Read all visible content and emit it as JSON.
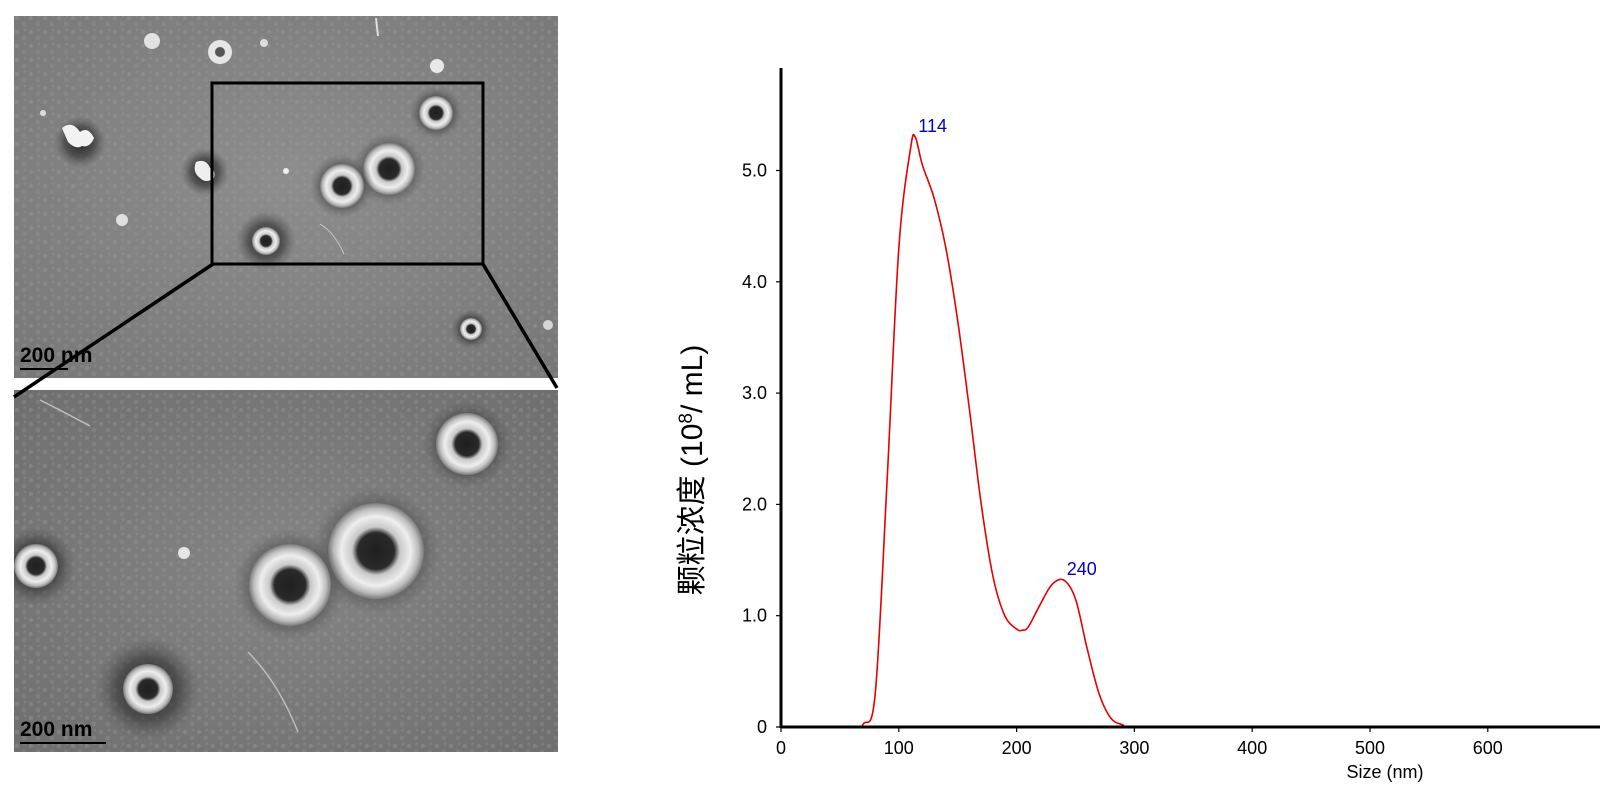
{
  "tem_images": {
    "top": {
      "scale_bar_label": "200 nm"
    },
    "bottom": {
      "scale_bar_label": "200 nm"
    }
  },
  "chart_data": {
    "type": "line",
    "title": "",
    "xlabel": "Size (nm)",
    "ylabel_prefix": "颗粒浓度 (10",
    "ylabel_exponent": "8",
    "ylabel_suffix": "/ mL)",
    "xlim": [
      0,
      670
    ],
    "ylim": [
      0,
      5.5
    ],
    "xticks": [
      0,
      100,
      200,
      300,
      400,
      500,
      600
    ],
    "yticks": [
      {
        "value": 0,
        "label": "0"
      },
      {
        "value": 1,
        "label": "1.0"
      },
      {
        "value": 2,
        "label": "2.0"
      },
      {
        "value": 3,
        "label": "3.0"
      },
      {
        "value": 4,
        "label": "4.0"
      },
      {
        "value": 5,
        "label": "5.0"
      }
    ],
    "series": [
      {
        "color": "#e60000",
        "x": [
          0,
          60,
          70,
          80,
          90,
          100,
          110,
          114,
          120,
          130,
          140,
          150,
          160,
          170,
          180,
          190,
          200,
          205,
          210,
          220,
          230,
          240,
          250,
          260,
          270,
          280,
          290,
          300,
          400,
          500,
          600,
          670
        ],
        "y": [
          0,
          0,
          0.03,
          0.3,
          2.2,
          4.3,
          5.2,
          5.3,
          5.05,
          4.75,
          4.3,
          3.65,
          2.85,
          2.0,
          1.35,
          1.0,
          0.88,
          0.87,
          0.9,
          1.1,
          1.28,
          1.32,
          1.15,
          0.7,
          0.3,
          0.08,
          0.02,
          0,
          0,
          0,
          0,
          0
        ]
      }
    ],
    "peak_labels": [
      {
        "x": 114,
        "y": 5.3,
        "label": "114"
      },
      {
        "x": 240,
        "y": 1.32,
        "label": "240"
      }
    ],
    "colors": {
      "curve": "#e60000",
      "peak_label": "#0000cc",
      "axis": "#000000"
    }
  }
}
